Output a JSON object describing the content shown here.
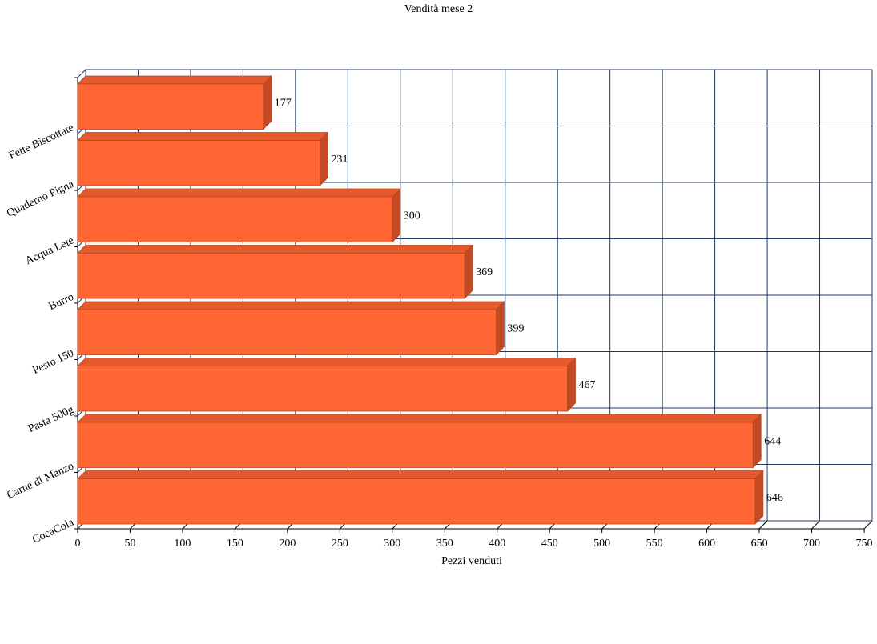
{
  "chart_data": {
    "type": "bar",
    "orientation": "horizontal",
    "title": "Vendità mese 2",
    "xlabel": "Pezzi venduti",
    "ylabel": "",
    "categories": [
      "Fette Biscottate",
      "Quaderno Pigna",
      "Acqua Lete",
      "Burro",
      "Pesto 150",
      "Pasta 500g",
      "Carne di Manzo",
      "CocaCola"
    ],
    "values": [
      177,
      231,
      300,
      369,
      399,
      467,
      644,
      646
    ],
    "data_labels": [
      "177",
      "231",
      "300",
      "369",
      "399",
      "467",
      "644",
      "646"
    ],
    "xlim": [
      0,
      750
    ],
    "xticks": [
      "0",
      "50",
      "100",
      "150",
      "200",
      "250",
      "300",
      "350",
      "400",
      "450",
      "500",
      "550",
      "600",
      "650",
      "700",
      "750"
    ],
    "grid": true,
    "legend": "none",
    "style": "3d",
    "colors": {
      "bar_front": "#FF6633",
      "bar_top": "#E55A2D",
      "bar_side": "#C24A24",
      "bar_outline": "#B84420",
      "grid": "#1F3A5F",
      "axis": "#000000"
    }
  }
}
